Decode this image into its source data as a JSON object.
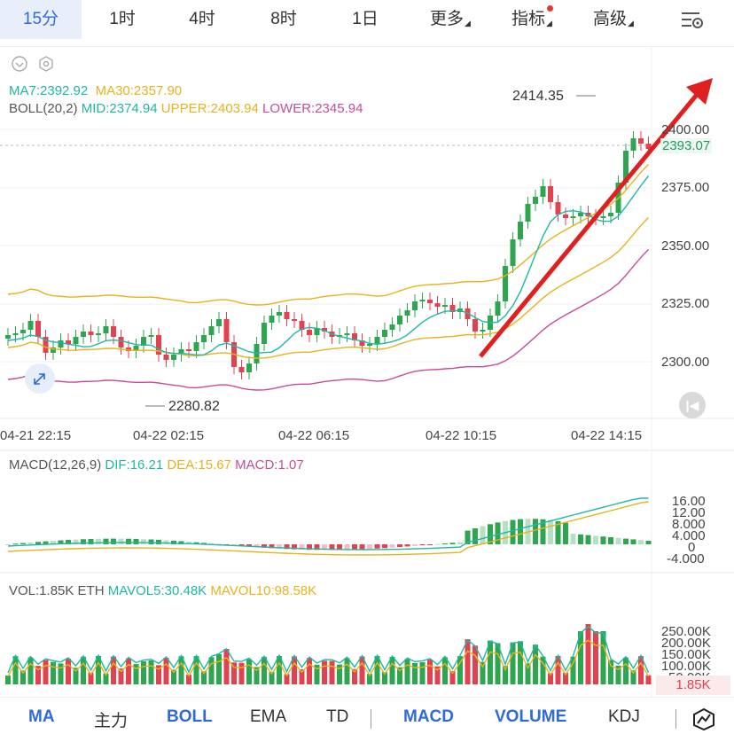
{
  "top_tabs": [
    {
      "label": "15分",
      "active": true
    },
    {
      "label": "1时",
      "active": false
    },
    {
      "label": "4时",
      "active": false
    },
    {
      "label": "8时",
      "active": false
    },
    {
      "label": "1日",
      "active": false
    },
    {
      "label": "更多",
      "active": false
    },
    {
      "label": "指标",
      "active": false
    },
    {
      "label": "高级",
      "active": false
    }
  ],
  "main_legend": {
    "ma7": "MA7:2392.92",
    "ma30": "MA30:2357.90",
    "boll": "BOLL(20,2)",
    "mid": "MID:2374.94",
    "upper": "UPPER:2403.94",
    "lower": "LOWER:2345.94"
  },
  "price_axis": [
    "2400.00",
    "2375.00",
    "2350.00",
    "2325.00",
    "2300.00"
  ],
  "current_price": "2393.07",
  "high_label": "2414.35",
  "low_label": "2280.82",
  "time_axis": [
    "04-21 22:15",
    "04-22 02:15",
    "04-22 06:15",
    "04-22 10:15",
    "04-22 14:15"
  ],
  "macd_legend": {
    "params": "MACD(12,26,9)",
    "dif": "DIF:16.21",
    "dea": "DEA:15.67",
    "macd": "MACD:1.07"
  },
  "macd_axis": [
    "16.00",
    "12.00",
    "8.000",
    "4.000",
    "0",
    "-4.000"
  ],
  "vol_legend": {
    "vol": "VOL:1.85K ETH",
    "mavol5": "MAVOL5:30.48K",
    "mavol10": "MAVOL10:98.58K"
  },
  "vol_axis": [
    "250.00K",
    "200.00K",
    "150.00K",
    "100.00K",
    "50.00K"
  ],
  "vol_current": "1.85K",
  "bottom_tabs": [
    {
      "label": "MA",
      "on": true
    },
    {
      "label": "主力",
      "on": false
    },
    {
      "label": "BOLL",
      "on": true
    },
    {
      "label": "EMA",
      "on": false
    },
    {
      "label": "TD",
      "on": false
    },
    {
      "label": "MACD",
      "on": true
    },
    {
      "label": "VOLUME",
      "on": true
    },
    {
      "label": "KDJ",
      "on": false
    }
  ],
  "colors": {
    "up": "#2ea54f",
    "down": "#e0434f",
    "accent": "#2f6bd8",
    "arrow": "#e02020"
  }
}
